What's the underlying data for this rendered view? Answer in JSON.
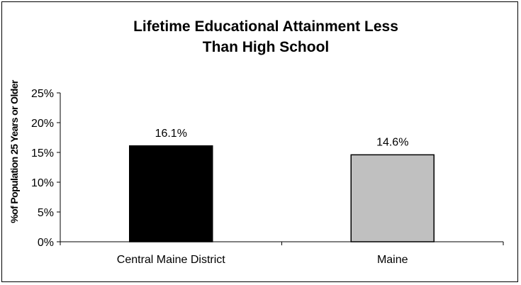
{
  "chart_data": {
    "type": "bar",
    "title_lines": [
      "Lifetime Educational Attainment Less",
      "Than High School"
    ],
    "ylabel": "%of Population 25 Years or Older",
    "xlabel": "",
    "categories": [
      "Central Maine District",
      "Maine"
    ],
    "values": [
      16.1,
      14.6
    ],
    "data_labels": [
      "16.1%",
      "14.6%"
    ],
    "bar_colors": [
      "#000000",
      "#c0c0c0"
    ],
    "ylim": [
      0,
      25
    ],
    "yticks": [
      0,
      5,
      10,
      15,
      20,
      25
    ],
    "ytick_labels": [
      "0%",
      "5%",
      "10%",
      "15%",
      "20%",
      "25%"
    ],
    "grid": false,
    "legend": "none"
  }
}
